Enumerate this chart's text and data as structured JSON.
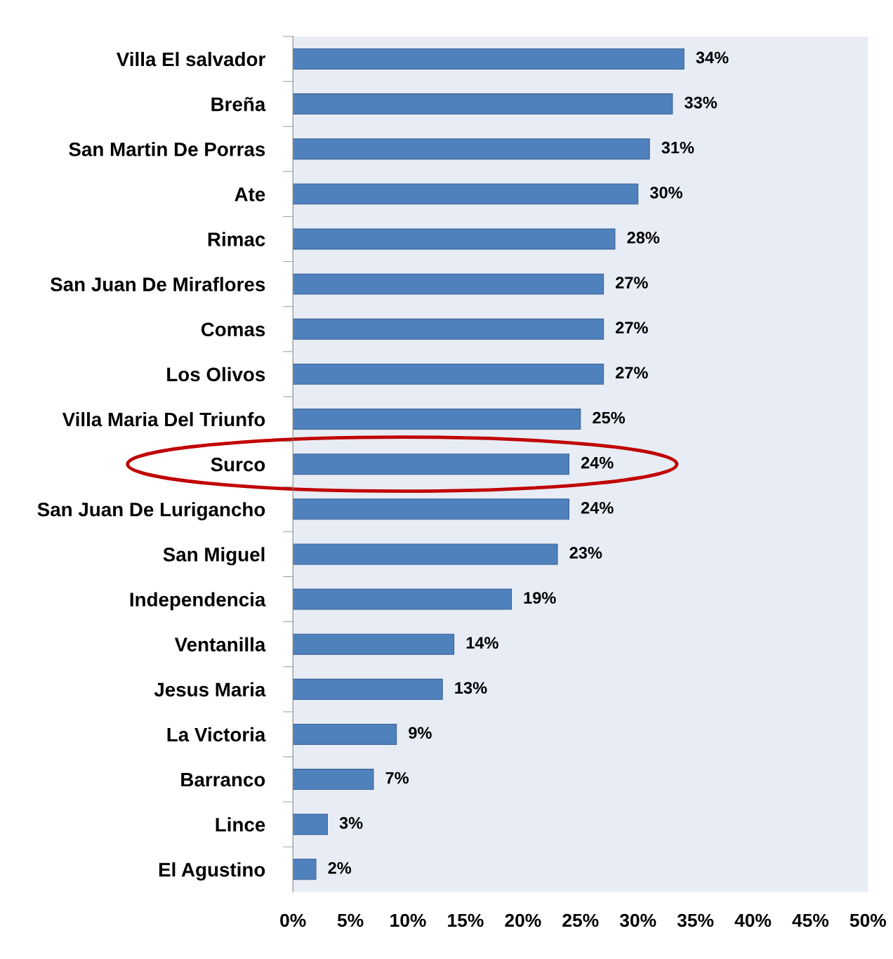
{
  "chart_data": {
    "type": "bar",
    "orientation": "horizontal",
    "categories": [
      "Villa El salvador",
      "Breña",
      "San Martin De Porras",
      "Ate",
      "Rimac",
      "San Juan De Miraflores",
      "Comas",
      "Los Olivos",
      "Villa Maria Del Triunfo",
      "Surco",
      "San Juan De Lurigancho",
      "San Miguel",
      "Independencia",
      "Ventanilla",
      "Jesus Maria",
      "La Victoria",
      "Barranco",
      "Lince",
      "El Agustino"
    ],
    "values": [
      34,
      33,
      31,
      30,
      28,
      27,
      27,
      27,
      25,
      24,
      24,
      23,
      19,
      14,
      13,
      9,
      7,
      3,
      2
    ],
    "value_labels": [
      "34%",
      "33%",
      "31%",
      "30%",
      "28%",
      "27%",
      "27%",
      "27%",
      "25%",
      "24%",
      "24%",
      "23%",
      "19%",
      "14%",
      "13%",
      "9%",
      "7%",
      "3%",
      "2%"
    ],
    "color": "#4f81bd",
    "xlim": [
      0,
      50
    ],
    "xticks": [
      {
        "value": 0,
        "label": "0%"
      },
      {
        "value": 5,
        "label": "5%"
      },
      {
        "value": 10,
        "label": "10%"
      },
      {
        "value": 15,
        "label": "15%"
      },
      {
        "value": 20,
        "label": "20%"
      },
      {
        "value": 25,
        "label": "25%"
      },
      {
        "value": 30,
        "label": "30%"
      },
      {
        "value": 35,
        "label": "35%"
      },
      {
        "value": 40,
        "label": "40%"
      },
      {
        "value": 45,
        "label": "45%"
      },
      {
        "value": 50,
        "label": "50%"
      }
    ],
    "grid": false
  }
}
